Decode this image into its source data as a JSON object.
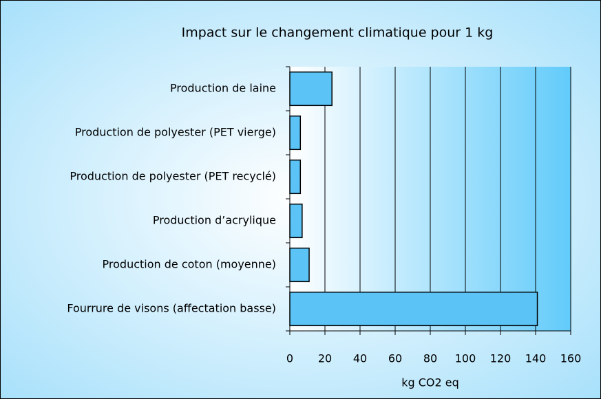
{
  "chart_data": {
    "type": "bar",
    "orientation": "horizontal",
    "title": "Impact sur le changement climatique pour 1 kg",
    "x_label": "kg CO2 eq",
    "categories": [
      "Production de laine",
      "Production de polyester (PET vierge)",
      "Production de polyester (PET recyclé)",
      "Production d’acrylique",
      "Production de coton (moyenne)",
      "Fourrure de visons (affectation basse)"
    ],
    "values": [
      24,
      6,
      6,
      7,
      11,
      141
    ],
    "color": "#5bc3f5",
    "xlim": [
      0,
      160
    ],
    "xticks": [
      0,
      20,
      40,
      60,
      80,
      100,
      120,
      140,
      160
    ],
    "grid": true
  }
}
